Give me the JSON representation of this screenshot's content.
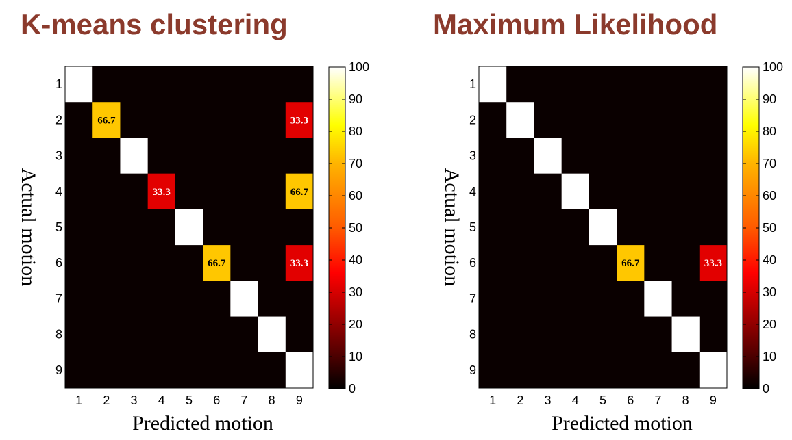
{
  "chart_data": [
    {
      "type": "heatmap",
      "title": "K-means clustering",
      "xlabel": "Predicted motion",
      "ylabel": "Actual motion",
      "x_categories": [
        "1",
        "2",
        "3",
        "4",
        "5",
        "6",
        "7",
        "8",
        "9"
      ],
      "y_categories": [
        "1",
        "2",
        "3",
        "4",
        "5",
        "6",
        "7",
        "8",
        "9"
      ],
      "values": [
        [
          100,
          0,
          0,
          0,
          0,
          0,
          0,
          0,
          0
        ],
        [
          0,
          66.7,
          0,
          0,
          0,
          0,
          0,
          0,
          33.3
        ],
        [
          0,
          0,
          100,
          0,
          0,
          0,
          0,
          0,
          0
        ],
        [
          0,
          0,
          0,
          33.3,
          0,
          0,
          0,
          0,
          66.7
        ],
        [
          0,
          0,
          0,
          0,
          100,
          0,
          0,
          0,
          0
        ],
        [
          0,
          0,
          0,
          0,
          0,
          66.7,
          0,
          0,
          33.3
        ],
        [
          0,
          0,
          0,
          0,
          0,
          0,
          100,
          0,
          0
        ],
        [
          0,
          0,
          0,
          0,
          0,
          0,
          0,
          100,
          0
        ],
        [
          0,
          0,
          0,
          0,
          0,
          0,
          0,
          0,
          100
        ]
      ],
      "data_labels": [
        {
          "row": 2,
          "col": 2,
          "text": "66.7"
        },
        {
          "row": 2,
          "col": 9,
          "text": "33.3"
        },
        {
          "row": 4,
          "col": 4,
          "text": "33.3"
        },
        {
          "row": 4,
          "col": 9,
          "text": "66.7"
        },
        {
          "row": 6,
          "col": 6,
          "text": "66.7"
        },
        {
          "row": 6,
          "col": 9,
          "text": "33.3"
        }
      ],
      "colorbar_ticks": [
        "0",
        "10",
        "20",
        "30",
        "40",
        "50",
        "60",
        "70",
        "80",
        "90",
        "100"
      ],
      "colorbar_range": [
        0,
        100
      ],
      "colormap": "hot"
    },
    {
      "type": "heatmap",
      "title": "Maximum Likelihood",
      "xlabel": "Predicted motion",
      "ylabel": "Actual motion",
      "x_categories": [
        "1",
        "2",
        "3",
        "4",
        "5",
        "6",
        "7",
        "8",
        "9"
      ],
      "y_categories": [
        "1",
        "2",
        "3",
        "4",
        "5",
        "6",
        "7",
        "8",
        "9"
      ],
      "values": [
        [
          100,
          0,
          0,
          0,
          0,
          0,
          0,
          0,
          0
        ],
        [
          0,
          100,
          0,
          0,
          0,
          0,
          0,
          0,
          0
        ],
        [
          0,
          0,
          100,
          0,
          0,
          0,
          0,
          0,
          0
        ],
        [
          0,
          0,
          0,
          100,
          0,
          0,
          0,
          0,
          0
        ],
        [
          0,
          0,
          0,
          0,
          100,
          0,
          0,
          0,
          0
        ],
        [
          0,
          0,
          0,
          0,
          0,
          66.7,
          0,
          0,
          33.3
        ],
        [
          0,
          0,
          0,
          0,
          0,
          0,
          100,
          0,
          0
        ],
        [
          0,
          0,
          0,
          0,
          0,
          0,
          0,
          100,
          0
        ],
        [
          0,
          0,
          0,
          0,
          0,
          0,
          0,
          0,
          100
        ]
      ],
      "data_labels": [
        {
          "row": 6,
          "col": 6,
          "text": "66.7"
        },
        {
          "row": 6,
          "col": 9,
          "text": "33.3"
        }
      ],
      "colorbar_ticks": [
        "0",
        "10",
        "20",
        "30",
        "40",
        "50",
        "60",
        "70",
        "80",
        "90",
        "100"
      ],
      "colorbar_range": [
        0,
        100
      ],
      "colormap": "hot"
    }
  ],
  "colors": {
    "title": "#8b3a2c",
    "background_cell": "#0a0000",
    "label_on_orange": "#000000",
    "label_on_red": "#ffffff"
  }
}
